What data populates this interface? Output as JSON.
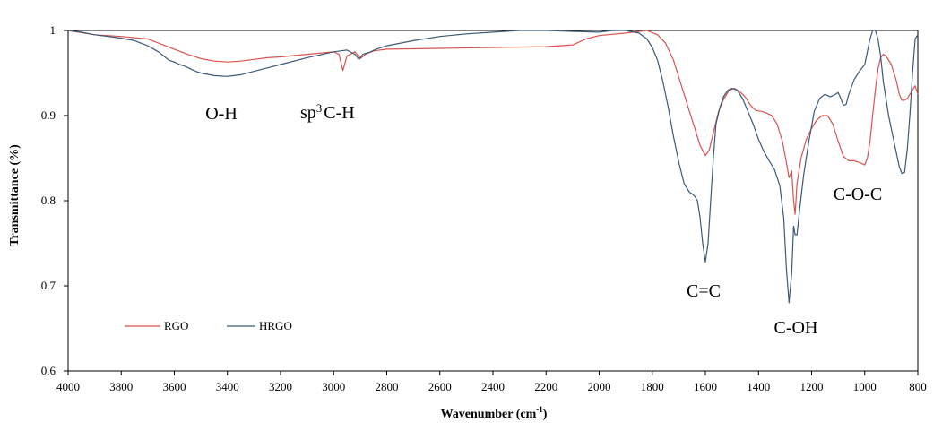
{
  "chart_data": {
    "type": "line",
    "title": "",
    "xlabel_main": "Wavenumber (cm",
    "xlabel_sup": "-1",
    "xlabel_end": ")",
    "ylabel": "Transmittance (%)",
    "xlim": [
      4000,
      800
    ],
    "x_reversed": true,
    "ylim": [
      0.6,
      1.0
    ],
    "xticks": [
      "4000",
      "3800",
      "3600",
      "3400",
      "3200",
      "3000",
      "2800",
      "2600",
      "2400",
      "2200",
      "2000",
      "1800",
      "1600",
      "1400",
      "1200",
      "1000",
      "800"
    ],
    "yticks": [
      "0.6",
      "0.7",
      "0.8",
      "0.9",
      "1"
    ],
    "grid": false,
    "legend_placement": "bottom-left",
    "series": [
      {
        "name": "RGO",
        "color": "#d9534f",
        "points": [
          [
            4000,
            1.0
          ],
          [
            3900,
            0.995
          ],
          [
            3800,
            0.993
          ],
          [
            3700,
            0.99
          ],
          [
            3650,
            0.984
          ],
          [
            3600,
            0.978
          ],
          [
            3550,
            0.972
          ],
          [
            3500,
            0.967
          ],
          [
            3450,
            0.964
          ],
          [
            3400,
            0.963
          ],
          [
            3350,
            0.964
          ],
          [
            3300,
            0.966
          ],
          [
            3250,
            0.968
          ],
          [
            3200,
            0.969
          ],
          [
            3100,
            0.972
          ],
          [
            3000,
            0.975
          ],
          [
            2980,
            0.972
          ],
          [
            2965,
            0.953
          ],
          [
            2950,
            0.97
          ],
          [
            2920,
            0.975
          ],
          [
            2900,
            0.967
          ],
          [
            2880,
            0.972
          ],
          [
            2850,
            0.976
          ],
          [
            2800,
            0.978
          ],
          [
            2600,
            0.979
          ],
          [
            2400,
            0.98
          ],
          [
            2200,
            0.981
          ],
          [
            2100,
            0.983
          ],
          [
            2050,
            0.99
          ],
          [
            2000,
            0.994
          ],
          [
            1900,
            0.997
          ],
          [
            1820,
            1.0
          ],
          [
            1780,
            0.995
          ],
          [
            1750,
            0.985
          ],
          [
            1720,
            0.965
          ],
          [
            1700,
            0.945
          ],
          [
            1680,
            0.925
          ],
          [
            1660,
            0.905
          ],
          [
            1640,
            0.885
          ],
          [
            1620,
            0.865
          ],
          [
            1600,
            0.853
          ],
          [
            1585,
            0.86
          ],
          [
            1570,
            0.88
          ],
          [
            1550,
            0.905
          ],
          [
            1530,
            0.92
          ],
          [
            1510,
            0.93
          ],
          [
            1490,
            0.932
          ],
          [
            1470,
            0.928
          ],
          [
            1450,
            0.922
          ],
          [
            1430,
            0.912
          ],
          [
            1410,
            0.906
          ],
          [
            1390,
            0.905
          ],
          [
            1370,
            0.903
          ],
          [
            1350,
            0.9
          ],
          [
            1330,
            0.89
          ],
          [
            1310,
            0.87
          ],
          [
            1295,
            0.845
          ],
          [
            1285,
            0.827
          ],
          [
            1275,
            0.835
          ],
          [
            1268,
            0.8
          ],
          [
            1262,
            0.784
          ],
          [
            1255,
            0.82
          ],
          [
            1240,
            0.85
          ],
          [
            1220,
            0.872
          ],
          [
            1200,
            0.885
          ],
          [
            1180,
            0.895
          ],
          [
            1160,
            0.9
          ],
          [
            1140,
            0.9
          ],
          [
            1120,
            0.89
          ],
          [
            1100,
            0.87
          ],
          [
            1080,
            0.852
          ],
          [
            1060,
            0.847
          ],
          [
            1040,
            0.847
          ],
          [
            1020,
            0.845
          ],
          [
            1000,
            0.842
          ],
          [
            990,
            0.85
          ],
          [
            980,
            0.87
          ],
          [
            970,
            0.9
          ],
          [
            960,
            0.93
          ],
          [
            950,
            0.955
          ],
          [
            940,
            0.968
          ],
          [
            930,
            0.972
          ],
          [
            920,
            0.97
          ],
          [
            900,
            0.96
          ],
          [
            880,
            0.94
          ],
          [
            870,
            0.925
          ],
          [
            860,
            0.918
          ],
          [
            850,
            0.918
          ],
          [
            840,
            0.92
          ],
          [
            830,
            0.925
          ],
          [
            820,
            0.93
          ],
          [
            810,
            0.935
          ],
          [
            800,
            0.925
          ]
        ]
      },
      {
        "name": "HRGO",
        "color": "#3a5a7a",
        "points": [
          [
            4000,
            1.0
          ],
          [
            3950,
            0.998
          ],
          [
            3900,
            0.995
          ],
          [
            3850,
            0.993
          ],
          [
            3800,
            0.991
          ],
          [
            3750,
            0.988
          ],
          [
            3700,
            0.982
          ],
          [
            3660,
            0.975
          ],
          [
            3640,
            0.97
          ],
          [
            3620,
            0.965
          ],
          [
            3600,
            0.963
          ],
          [
            3580,
            0.96
          ],
          [
            3560,
            0.958
          ],
          [
            3540,
            0.955
          ],
          [
            3520,
            0.952
          ],
          [
            3500,
            0.95
          ],
          [
            3450,
            0.947
          ],
          [
            3400,
            0.946
          ],
          [
            3350,
            0.948
          ],
          [
            3300,
            0.952
          ],
          [
            3250,
            0.956
          ],
          [
            3200,
            0.96
          ],
          [
            3100,
            0.968
          ],
          [
            3000,
            0.975
          ],
          [
            2950,
            0.977
          ],
          [
            2920,
            0.972
          ],
          [
            2905,
            0.966
          ],
          [
            2890,
            0.972
          ],
          [
            2860,
            0.975
          ],
          [
            2840,
            0.978
          ],
          [
            2800,
            0.982
          ],
          [
            2700,
            0.988
          ],
          [
            2600,
            0.993
          ],
          [
            2500,
            0.996
          ],
          [
            2400,
            0.998
          ],
          [
            2300,
            1.0
          ],
          [
            2200,
            1.0
          ],
          [
            2100,
            0.999
          ],
          [
            2000,
            0.998
          ],
          [
            1950,
            1.0
          ],
          [
            1900,
            1.0
          ],
          [
            1850,
            0.997
          ],
          [
            1820,
            0.99
          ],
          [
            1800,
            0.98
          ],
          [
            1780,
            0.965
          ],
          [
            1760,
            0.94
          ],
          [
            1740,
            0.91
          ],
          [
            1720,
            0.875
          ],
          [
            1700,
            0.845
          ],
          [
            1680,
            0.82
          ],
          [
            1660,
            0.81
          ],
          [
            1650,
            0.808
          ],
          [
            1640,
            0.805
          ],
          [
            1630,
            0.8
          ],
          [
            1620,
            0.78
          ],
          [
            1610,
            0.75
          ],
          [
            1600,
            0.728
          ],
          [
            1590,
            0.75
          ],
          [
            1580,
            0.8
          ],
          [
            1570,
            0.85
          ],
          [
            1560,
            0.89
          ],
          [
            1545,
            0.91
          ],
          [
            1530,
            0.923
          ],
          [
            1515,
            0.93
          ],
          [
            1500,
            0.932
          ],
          [
            1480,
            0.93
          ],
          [
            1460,
            0.92
          ],
          [
            1440,
            0.905
          ],
          [
            1420,
            0.89
          ],
          [
            1400,
            0.872
          ],
          [
            1380,
            0.858
          ],
          [
            1360,
            0.847
          ],
          [
            1340,
            0.837
          ],
          [
            1320,
            0.818
          ],
          [
            1305,
            0.78
          ],
          [
            1295,
            0.72
          ],
          [
            1285,
            0.68
          ],
          [
            1275,
            0.715
          ],
          [
            1268,
            0.77
          ],
          [
            1262,
            0.76
          ],
          [
            1255,
            0.76
          ],
          [
            1245,
            0.79
          ],
          [
            1230,
            0.83
          ],
          [
            1210,
            0.87
          ],
          [
            1190,
            0.905
          ],
          [
            1170,
            0.92
          ],
          [
            1150,
            0.925
          ],
          [
            1130,
            0.922
          ],
          [
            1110,
            0.925
          ],
          [
            1100,
            0.927
          ],
          [
            1090,
            0.92
          ],
          [
            1080,
            0.912
          ],
          [
            1070,
            0.913
          ],
          [
            1060,
            0.925
          ],
          [
            1040,
            0.942
          ],
          [
            1020,
            0.952
          ],
          [
            1000,
            0.96
          ],
          [
            990,
            0.975
          ],
          [
            980,
            0.99
          ],
          [
            970,
            1.0
          ],
          [
            960,
            1.0
          ],
          [
            950,
            0.99
          ],
          [
            940,
            0.97
          ],
          [
            930,
            0.94
          ],
          [
            910,
            0.9
          ],
          [
            890,
            0.87
          ],
          [
            870,
            0.84
          ],
          [
            860,
            0.832
          ],
          [
            850,
            0.833
          ],
          [
            840,
            0.86
          ],
          [
            830,
            0.9
          ],
          [
            820,
            0.95
          ],
          [
            810,
            0.99
          ],
          [
            800,
            0.995
          ]
        ]
      }
    ],
    "annotations": [
      {
        "text": "O-H",
        "x": 3430,
        "y": 0.91
      },
      {
        "text": "C-H",
        "x": 2855,
        "y": 0.911
      },
      {
        "text": "C=C",
        "x": 1605,
        "y": 0.701
      },
      {
        "text": "C-OH",
        "x": 1275,
        "y": 0.648
      },
      {
        "text": "C-O-C",
        "x": 1080,
        "y": 0.81
      }
    ],
    "annotation_sp": "sp",
    "annotation_sp_sup": "3"
  }
}
